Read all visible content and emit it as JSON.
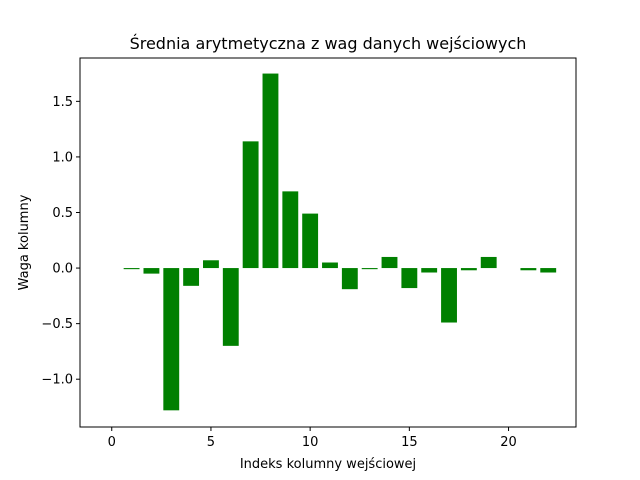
{
  "chart_data": {
    "type": "bar",
    "title": "Średnia arytmetyczna z wag danych wejściowych",
    "xlabel": "Indeks kolumny wejściowej",
    "ylabel": "Waga kolumny",
    "x": [
      1,
      2,
      3,
      4,
      5,
      6,
      7,
      8,
      9,
      10,
      11,
      12,
      13,
      14,
      15,
      16,
      17,
      18,
      19,
      21,
      22
    ],
    "values": [
      -0.01,
      -0.05,
      -1.28,
      -0.16,
      0.07,
      -0.7,
      1.14,
      1.75,
      0.69,
      0.49,
      0.05,
      -0.19,
      -0.01,
      0.1,
      -0.18,
      -0.04,
      -0.49,
      -0.02,
      0.1,
      -0.02,
      -0.04
    ],
    "bar_color": "#008000",
    "xlim": [
      -1.6,
      23.4
    ],
    "ylim": [
      -1.43,
      1.89
    ],
    "xticks": [
      0,
      5,
      10,
      15,
      20
    ],
    "yticks": [
      -1.0,
      -0.5,
      0.0,
      0.5,
      1.0,
      1.5
    ],
    "ytick_labels": [
      "−1.0",
      "−0.5",
      "0.0",
      "0.5",
      "1.0",
      "1.5"
    ],
    "grid": false,
    "legend": "none"
  }
}
